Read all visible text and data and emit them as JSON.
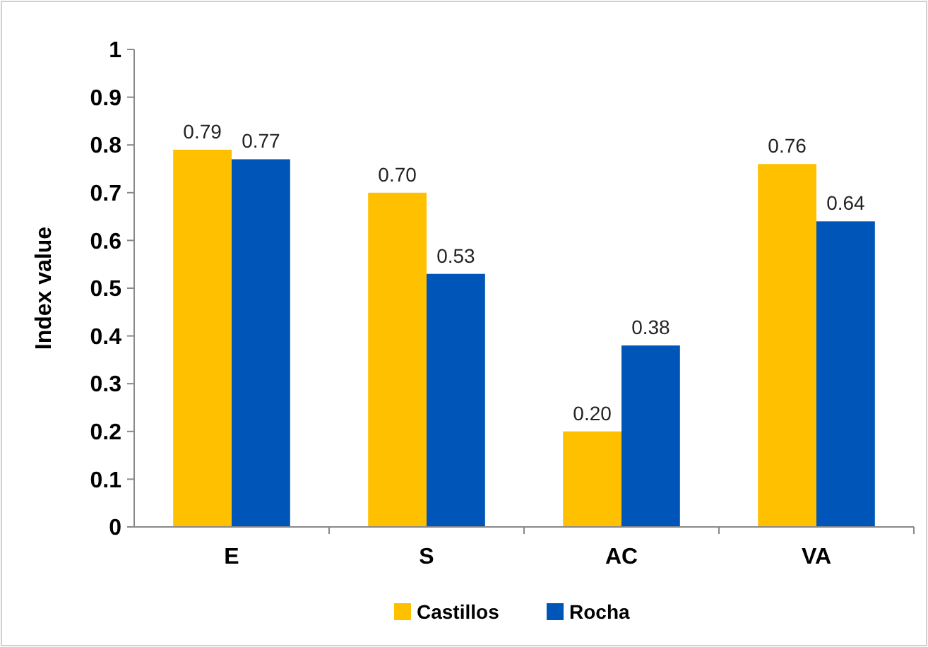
{
  "chart_data": {
    "type": "bar",
    "ylabel": "Index value",
    "categories": [
      "E",
      "S",
      "AC",
      "VA"
    ],
    "series": [
      {
        "name": "Castillos",
        "color": "#ffc000",
        "values": [
          0.79,
          0.7,
          0.2,
          0.76
        ],
        "value_labels": [
          "0.79",
          "0.70",
          "0.20",
          "0.76"
        ]
      },
      {
        "name": "Rocha",
        "color": "#0055b8",
        "values": [
          0.77,
          0.53,
          0.38,
          0.64
        ],
        "value_labels": [
          "0.77",
          "0.53",
          "0.38",
          "0.64"
        ]
      }
    ],
    "ylim": [
      0,
      1
    ],
    "yticks": [
      0,
      0.1,
      0.2,
      0.3,
      0.4,
      0.5,
      0.6,
      0.7,
      0.8,
      0.9,
      1
    ],
    "grid": false,
    "legend": "bottom"
  }
}
